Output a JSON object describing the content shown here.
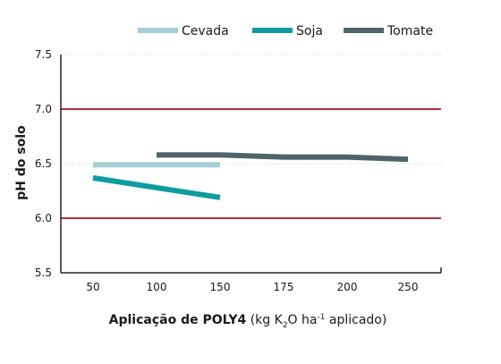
{
  "chart_data": {
    "type": "line",
    "title": "",
    "ylabel": "pH do solo",
    "xlabel": {
      "bold": "Aplicação de POLY4",
      "open": " (kg K",
      "sub": "2",
      "mid": "O ha",
      "sup": "-1",
      "close": " aplicado)"
    },
    "x_categories": [
      "50",
      "100",
      "150",
      "175",
      "200",
      "250"
    ],
    "y_ticks": [
      "7.5",
      "7.0",
      "6.5",
      "6.0",
      "5.5"
    ],
    "ylim": [
      5.5,
      7.5
    ],
    "reference_lines": [
      7.0,
      6.0
    ],
    "reference_color": "#b0303c",
    "grid": true,
    "legend_position": "top",
    "series": [
      {
        "name": "Cevada",
        "color": "#a7cdd6",
        "points": [
          [
            "50",
            6.49
          ],
          [
            "150",
            6.49
          ]
        ]
      },
      {
        "name": "Soja",
        "color": "#0f9c9e",
        "points": [
          [
            "50",
            6.37
          ],
          [
            "150",
            6.19
          ]
        ]
      },
      {
        "name": "Tomate",
        "color": "#4e6468",
        "points": [
          [
            "100",
            6.58
          ],
          [
            "150",
            6.58
          ],
          [
            "175",
            6.56
          ],
          [
            "200",
            6.56
          ],
          [
            "250",
            6.54
          ]
        ]
      }
    ]
  }
}
